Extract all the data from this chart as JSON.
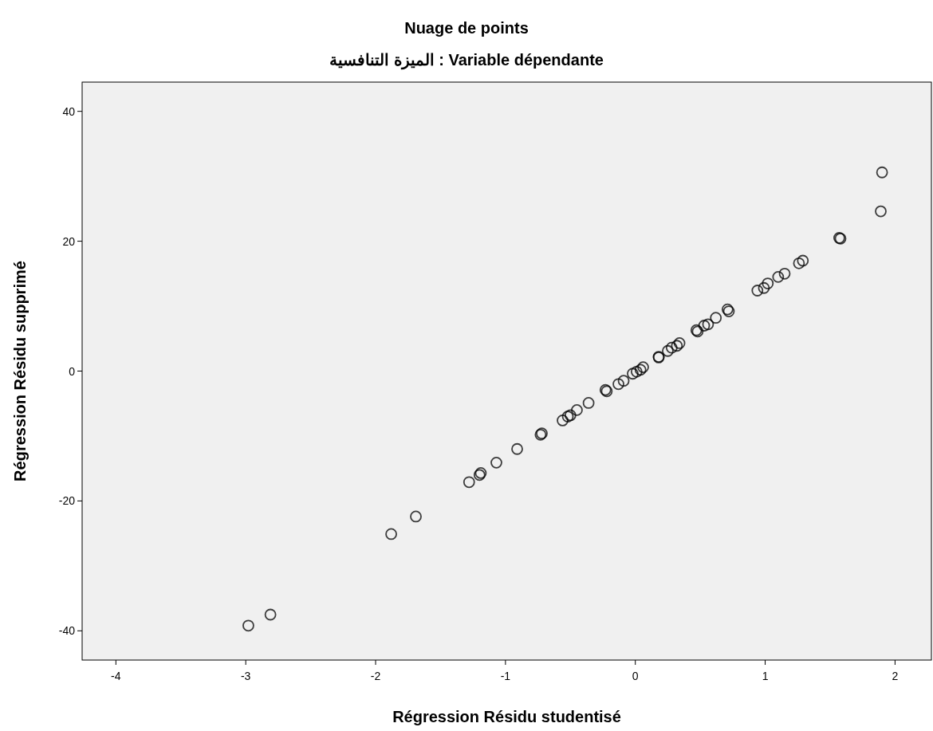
{
  "chart_data": {
    "type": "scatter",
    "title": "Nuage de points",
    "subtitle": "Variable dépendante : الميزة التنافسية",
    "xlabel": "Régression Résidu studentisé",
    "ylabel": "Régression Résidu supprimé",
    "xlim": [
      -4.26,
      2.28
    ],
    "ylim": [
      -44.5,
      44.5
    ],
    "xticks": [
      -4,
      -3,
      -2,
      -1,
      0,
      1,
      2
    ],
    "yticks": [
      -40,
      -20,
      0,
      20,
      40
    ],
    "marker": "circle",
    "grid": false,
    "series": [
      {
        "color": "#000000",
        "x": [
          -2.98,
          -2.81,
          -1.88,
          -1.69,
          -1.28,
          -1.2,
          -1.19,
          -1.07,
          -0.91,
          -0.72,
          -0.73,
          -0.56,
          -0.52,
          -0.5,
          -0.45,
          -0.36,
          -0.23,
          -0.22,
          -0.13,
          -0.09,
          -0.02,
          0.01,
          0.04,
          0.06,
          0.18,
          0.18,
          0.25,
          0.28,
          0.32,
          0.34,
          0.47,
          0.48,
          0.53,
          0.56,
          0.62,
          0.71,
          0.72,
          0.94,
          0.99,
          1.02,
          1.1,
          1.15,
          1.26,
          1.29,
          1.57,
          1.58,
          1.89,
          1.9
        ],
        "values": [
          -39.2,
          -37.5,
          -25.1,
          -22.4,
          -17.1,
          -16.0,
          -15.7,
          -14.1,
          -12.0,
          -9.6,
          -9.8,
          -7.6,
          -7.0,
          -6.8,
          -6.0,
          -4.9,
          -2.9,
          -3.1,
          -2.0,
          -1.5,
          -0.4,
          -0.1,
          0.2,
          0.6,
          2.2,
          2.1,
          3.1,
          3.6,
          3.9,
          4.3,
          6.3,
          6.1,
          7.0,
          7.2,
          8.2,
          9.5,
          9.2,
          12.4,
          12.8,
          13.5,
          14.5,
          15.0,
          16.6,
          17.0,
          20.5,
          20.4,
          24.6,
          30.6
        ]
      }
    ]
  }
}
